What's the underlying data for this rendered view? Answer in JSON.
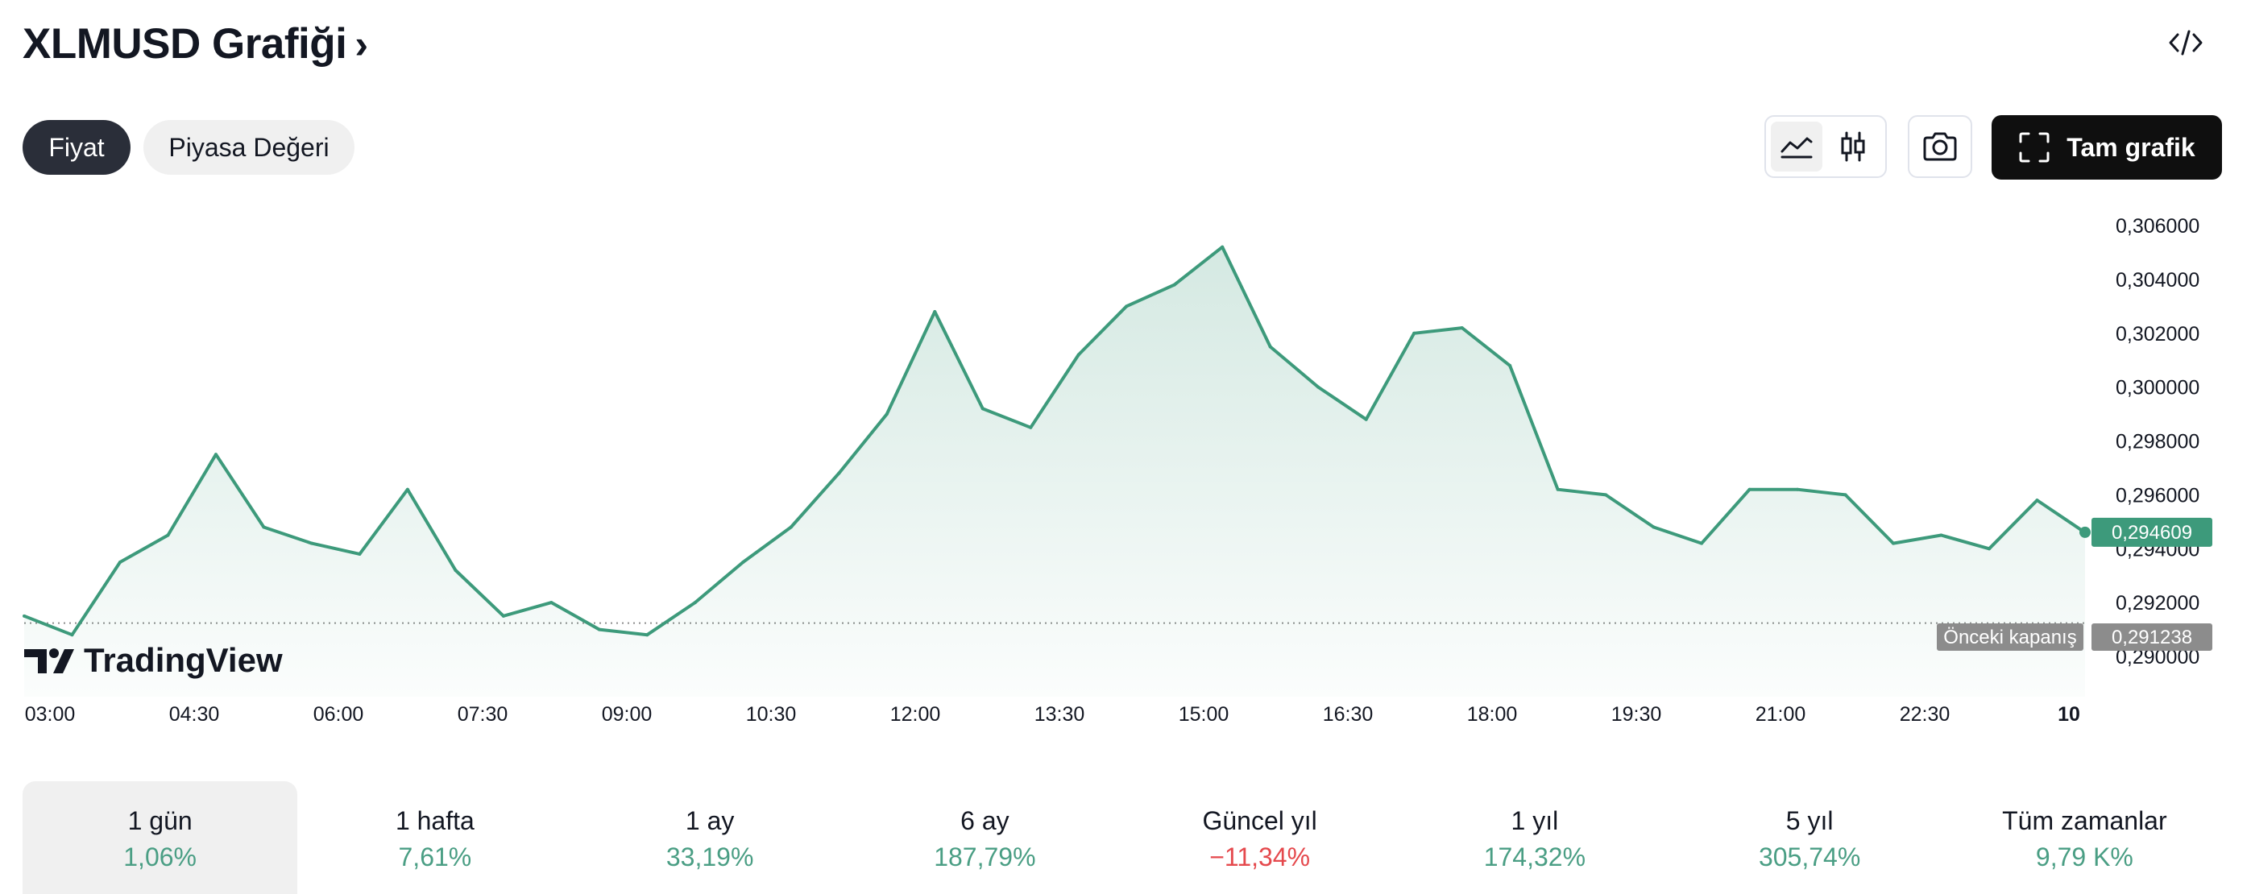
{
  "header": {
    "title": "XLMUSD Grafiği",
    "chevron": "›"
  },
  "tabs": [
    {
      "label": "Fiyat",
      "active": true
    },
    {
      "label": "Piyasa Değeri",
      "active": false
    }
  ],
  "toolbar": {
    "full_chart_label": "Tam grafik"
  },
  "brand": {
    "logo_text": "TradingView"
  },
  "colors": {
    "line": "#3d9a7b",
    "down": "#e5494d",
    "up": "#4a9e84",
    "prev_close_badge": "#8c8c8c"
  },
  "chart_data": {
    "type": "area",
    "symbol": "XLMUSD",
    "y_ticks": [
      "0,306000",
      "0,304000",
      "0,302000",
      "0,300000",
      "0,298000",
      "0,296000",
      "0,294000",
      "0,292000",
      "0,290000"
    ],
    "x_ticks": [
      "03:00",
      "04:30",
      "06:00",
      "07:30",
      "09:00",
      "10:30",
      "12:00",
      "13:30",
      "15:00",
      "16:30",
      "18:00",
      "19:30",
      "21:00",
      "22:30",
      "10"
    ],
    "ylim": [
      0.29,
      0.306
    ],
    "last_price": 0.294609,
    "last_price_label": "0,294609",
    "prev_close": 0.291238,
    "prev_close_label": "0,291238",
    "prev_close_text": "Önceki kapanış",
    "series": [
      {
        "x": [
          "03:00",
          "03:30",
          "04:00",
          "04:30",
          "05:00",
          "05:30",
          "06:00",
          "06:30",
          "07:00",
          "07:30",
          "08:00",
          "08:30",
          "09:00",
          "09:30",
          "10:00",
          "10:30",
          "11:00",
          "11:30",
          "12:00",
          "12:30",
          "13:00",
          "13:30",
          "14:00",
          "14:30",
          "15:00",
          "15:30",
          "16:00",
          "16:30",
          "17:00",
          "17:30",
          "18:00",
          "18:30",
          "19:00",
          "19:30",
          "20:00",
          "20:30",
          "21:00",
          "21:30",
          "22:00",
          "22:30",
          "23:00",
          "23:30",
          "00:00",
          "00:10"
        ],
        "values": [
          0.2915,
          0.2908,
          0.2935,
          0.2945,
          0.2975,
          0.2948,
          0.2942,
          0.2938,
          0.2962,
          0.2932,
          0.2915,
          0.292,
          0.291,
          0.2908,
          0.292,
          0.2935,
          0.2948,
          0.2968,
          0.299,
          0.3028,
          0.2992,
          0.2985,
          0.3012,
          0.303,
          0.3038,
          0.3052,
          0.3015,
          0.3,
          0.2988,
          0.302,
          0.3022,
          0.3008,
          0.2962,
          0.296,
          0.2948,
          0.2942,
          0.2962,
          0.2962,
          0.296,
          0.2942,
          0.2945,
          0.294,
          0.2958,
          0.2946
        ]
      }
    ]
  },
  "performance": [
    {
      "label": "1 gün",
      "value": "1,06%",
      "dir": "up",
      "selected": true
    },
    {
      "label": "1 hafta",
      "value": "7,61%",
      "dir": "up",
      "selected": false
    },
    {
      "label": "1 ay",
      "value": "33,19%",
      "dir": "up",
      "selected": false
    },
    {
      "label": "6 ay",
      "value": "187,79%",
      "dir": "up",
      "selected": false
    },
    {
      "label": "Güncel yıl",
      "value": "−11,34%",
      "dir": "down",
      "selected": false
    },
    {
      "label": "1 yıl",
      "value": "174,32%",
      "dir": "up",
      "selected": false
    },
    {
      "label": "5 yıl",
      "value": "305,74%",
      "dir": "up",
      "selected": false
    },
    {
      "label": "Tüm zamanlar",
      "value": "9,79 K%",
      "dir": "up",
      "selected": false
    }
  ]
}
